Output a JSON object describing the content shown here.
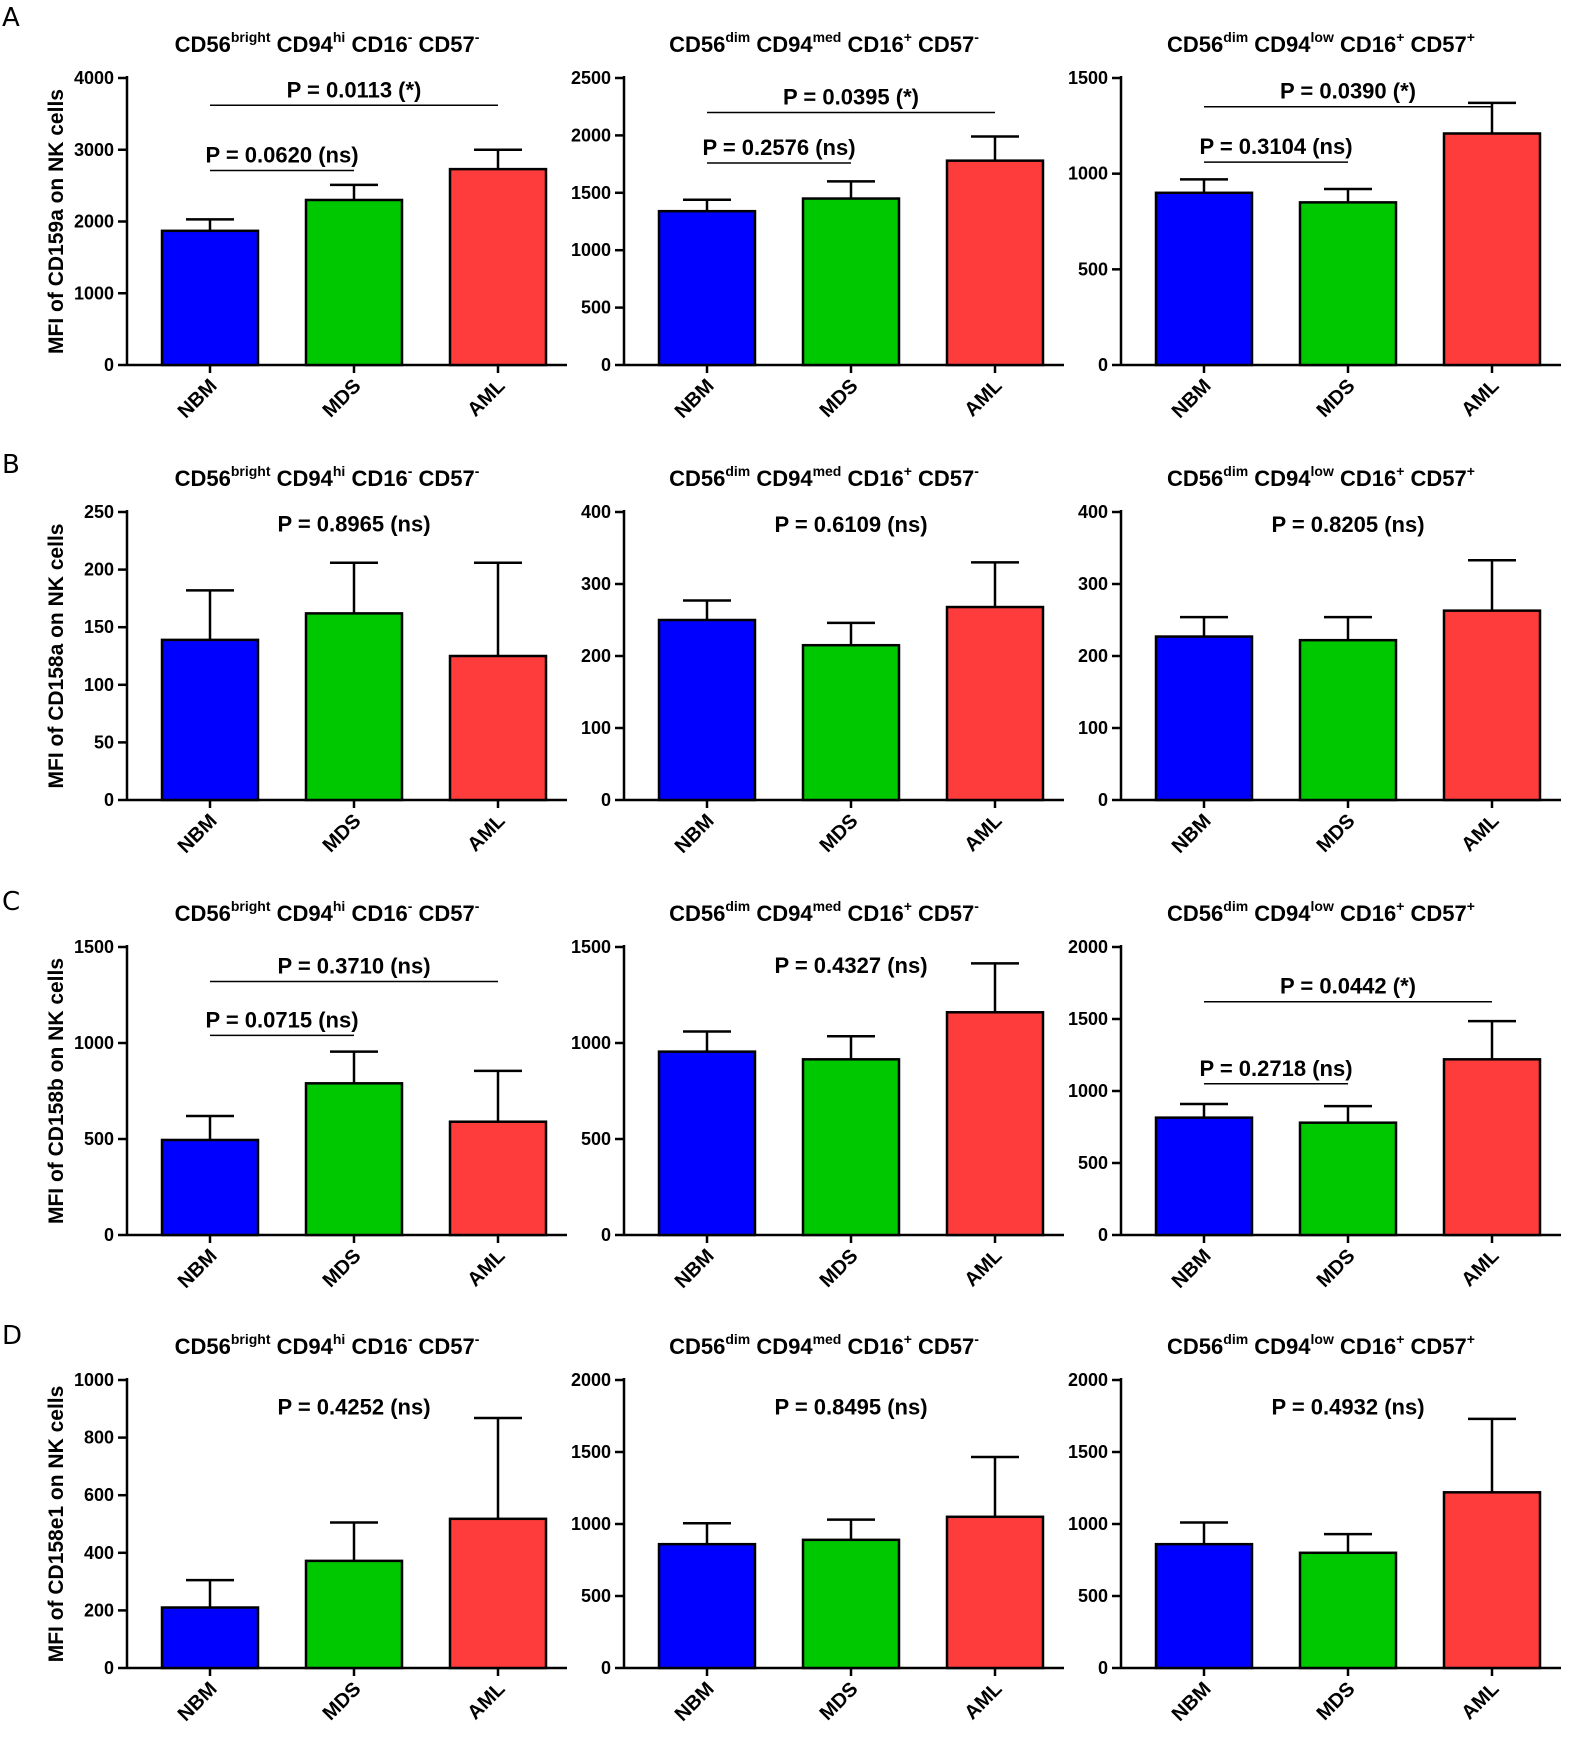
{
  "colors": {
    "NBM": "#0000ff",
    "MDS": "#00c800",
    "AML": "#ff3c3c",
    "axis": "#000000"
  },
  "chart_data": [
    {
      "type": "bar",
      "panel": "A",
      "column": 1,
      "ylabel": "MFI of CD159a on NK cells",
      "title_parts": [
        "CD56",
        "bright",
        " CD94",
        "hi",
        " CD16",
        "-",
        " CD57",
        "-"
      ],
      "categories": [
        "NBM",
        "MDS",
        "AML"
      ],
      "values": [
        1870,
        2300,
        2730
      ],
      "errors": [
        160,
        210,
        270
      ],
      "ylim": [
        0,
        4000
      ],
      "yticks": [
        "0",
        "1000",
        "2000",
        "3000",
        "4000"
      ],
      "comparisons": [
        {
          "label": "P = 0.0113 (*)",
          "from": 0,
          "to": 2,
          "level": 3620
        },
        {
          "label": "P = 0.0620 (ns)",
          "from": 0,
          "to": 1,
          "level": 2710
        }
      ]
    },
    {
      "type": "bar",
      "panel": "A",
      "column": 2,
      "title_parts": [
        "CD56",
        "dim",
        " CD94",
        "med",
        " CD16",
        "+",
        " CD57",
        "-"
      ],
      "categories": [
        "NBM",
        "MDS",
        "AML"
      ],
      "values": [
        1340,
        1450,
        1780
      ],
      "errors": [
        100,
        150,
        210
      ],
      "ylim": [
        0,
        2500
      ],
      "yticks": [
        "0",
        "500",
        "1000",
        "1500",
        "2000",
        "2500"
      ],
      "comparisons": [
        {
          "label": "P = 0.0395 (*)",
          "from": 0,
          "to": 2,
          "level": 2200
        },
        {
          "label": "P = 0.2576 (ns)",
          "from": 0,
          "to": 1,
          "level": 1760
        }
      ]
    },
    {
      "type": "bar",
      "panel": "A",
      "column": 3,
      "title_parts": [
        "CD56",
        "dim",
        " CD94",
        "low",
        " CD16",
        "+",
        " CD57",
        "+"
      ],
      "categories": [
        "NBM",
        "MDS",
        "AML"
      ],
      "values": [
        900,
        850,
        1210
      ],
      "errors": [
        70,
        70,
        160
      ],
      "ylim": [
        0,
        1500
      ],
      "yticks": [
        "0",
        "500",
        "1000",
        "1500"
      ],
      "comparisons": [
        {
          "label": "P = 0.0390 (*)",
          "from": 0,
          "to": 2,
          "level": 1350
        },
        {
          "label": "P = 0.3104 (ns)",
          "from": 0,
          "to": 1,
          "level": 1060
        }
      ]
    },
    {
      "type": "bar",
      "panel": "B",
      "column": 1,
      "ylabel": "MFI of CD158a on NK cells",
      "title_parts": [
        "CD56",
        "bright",
        " CD94",
        "hi",
        " CD16",
        "-",
        " CD57",
        "-"
      ],
      "categories": [
        "NBM",
        "MDS",
        "AML"
      ],
      "values": [
        139,
        162,
        125
      ],
      "errors": [
        43,
        44,
        81
      ],
      "ylim": [
        0,
        250
      ],
      "yticks": [
        "0",
        "50",
        "100",
        "150",
        "200",
        "250"
      ],
      "comparisons": [
        {
          "label": "P = 0.8965 (ns)",
          "from": null,
          "to": null,
          "level": 233
        }
      ]
    },
    {
      "type": "bar",
      "panel": "B",
      "column": 2,
      "title_parts": [
        "CD56",
        "dim",
        " CD94",
        "med",
        " CD16",
        "+",
        " CD57",
        "-"
      ],
      "categories": [
        "NBM",
        "MDS",
        "AML"
      ],
      "values": [
        250,
        215,
        268
      ],
      "errors": [
        27,
        31,
        62
      ],
      "ylim": [
        0,
        400
      ],
      "yticks": [
        "0",
        "100",
        "200",
        "300",
        "400"
      ],
      "comparisons": [
        {
          "label": "P = 0.6109 (ns)",
          "from": null,
          "to": null,
          "level": 372
        }
      ]
    },
    {
      "type": "bar",
      "panel": "B",
      "column": 3,
      "title_parts": [
        "CD56",
        "dim",
        " CD94",
        "low",
        " CD16",
        "+",
        " CD57",
        "+"
      ],
      "categories": [
        "NBM",
        "MDS",
        "AML"
      ],
      "values": [
        227,
        222,
        263
      ],
      "errors": [
        27,
        32,
        70
      ],
      "ylim": [
        0,
        400
      ],
      "yticks": [
        "0",
        "100",
        "200",
        "300",
        "400"
      ],
      "comparisons": [
        {
          "label": "P = 0.8205 (ns)",
          "from": null,
          "to": null,
          "level": 372
        }
      ]
    },
    {
      "type": "bar",
      "panel": "C",
      "column": 1,
      "ylabel": "MFI of CD158b on NK cells",
      "title_parts": [
        "CD56",
        "bright",
        " CD94",
        "hi",
        " CD16",
        "-",
        " CD57",
        "-"
      ],
      "categories": [
        "NBM",
        "MDS",
        "AML"
      ],
      "values": [
        495,
        790,
        590
      ],
      "errors": [
        125,
        165,
        265
      ],
      "ylim": [
        0,
        1500
      ],
      "yticks": [
        "0",
        "500",
        "1000",
        "1500"
      ],
      "comparisons": [
        {
          "label": "P = 0.3710 (ns)",
          "from": 0,
          "to": 2,
          "level": 1320
        },
        {
          "label": "P = 0.0715 (ns)",
          "from": 0,
          "to": 1,
          "level": 1040
        }
      ]
    },
    {
      "type": "bar",
      "panel": "C",
      "column": 2,
      "title_parts": [
        "CD56",
        "dim",
        " CD94",
        "med",
        " CD16",
        "+",
        " CD57",
        "-"
      ],
      "categories": [
        "NBM",
        "MDS",
        "AML"
      ],
      "values": [
        955,
        915,
        1160
      ],
      "errors": [
        105,
        120,
        255
      ],
      "ylim": [
        0,
        1500
      ],
      "yticks": [
        "0",
        "500",
        "1000",
        "1500"
      ],
      "comparisons": [
        {
          "label": "P = 0.4327 (ns)",
          "from": null,
          "to": null,
          "level": 1365
        }
      ]
    },
    {
      "type": "bar",
      "panel": "C",
      "column": 3,
      "title_parts": [
        "CD56",
        "dim",
        " CD94",
        "low",
        " CD16",
        "+",
        " CD57",
        "+"
      ],
      "categories": [
        "NBM",
        "MDS",
        "AML"
      ],
      "values": [
        815,
        780,
        1220
      ],
      "errors": [
        95,
        115,
        265
      ],
      "ylim": [
        0,
        2000
      ],
      "yticks": [
        "0",
        "500",
        "1000",
        "1500",
        "2000"
      ],
      "comparisons": [
        {
          "label": "P = 0.0442 (*)",
          "from": 0,
          "to": 2,
          "level": 1620
        },
        {
          "label": "P = 0.2718 (ns)",
          "from": 0,
          "to": 1,
          "level": 1050
        }
      ]
    },
    {
      "type": "bar",
      "panel": "D",
      "column": 1,
      "ylabel": "MFI of CD158e1 on NK cells",
      "title_parts": [
        "CD56",
        "bright",
        " CD94",
        "hi",
        " CD16",
        "-",
        " CD57",
        "-"
      ],
      "categories": [
        "NBM",
        "MDS",
        "AML"
      ],
      "values": [
        210,
        372,
        518
      ],
      "errors": [
        95,
        133,
        350
      ],
      "ylim": [
        0,
        1000
      ],
      "yticks": [
        "0",
        "200",
        "400",
        "600",
        "800",
        "1000"
      ],
      "comparisons": [
        {
          "label": "P = 0.4252 (ns)",
          "from": null,
          "to": null,
          "level": 880
        }
      ]
    },
    {
      "type": "bar",
      "panel": "D",
      "column": 2,
      "title_parts": [
        "CD56",
        "dim",
        " CD94",
        "med",
        " CD16",
        "+",
        " CD57",
        "-"
      ],
      "categories": [
        "NBM",
        "MDS",
        "AML"
      ],
      "values": [
        860,
        890,
        1050
      ],
      "errors": [
        145,
        140,
        415
      ],
      "ylim": [
        0,
        2000
      ],
      "yticks": [
        "0",
        "500",
        "1000",
        "1500",
        "2000"
      ],
      "comparisons": [
        {
          "label": "P = 0.8495 (ns)",
          "from": null,
          "to": null,
          "level": 1760
        }
      ]
    },
    {
      "type": "bar",
      "panel": "D",
      "column": 3,
      "title_parts": [
        "CD56",
        "dim",
        " CD94",
        "low",
        " CD16",
        "+",
        " CD57",
        "+"
      ],
      "categories": [
        "NBM",
        "MDS",
        "AML"
      ],
      "values": [
        860,
        800,
        1220
      ],
      "errors": [
        150,
        130,
        510
      ],
      "ylim": [
        0,
        2000
      ],
      "yticks": [
        "0",
        "500",
        "1000",
        "1500",
        "2000"
      ],
      "comparisons": [
        {
          "label": "P = 0.4932 (ns)",
          "from": null,
          "to": null,
          "level": 1760
        }
      ]
    }
  ]
}
